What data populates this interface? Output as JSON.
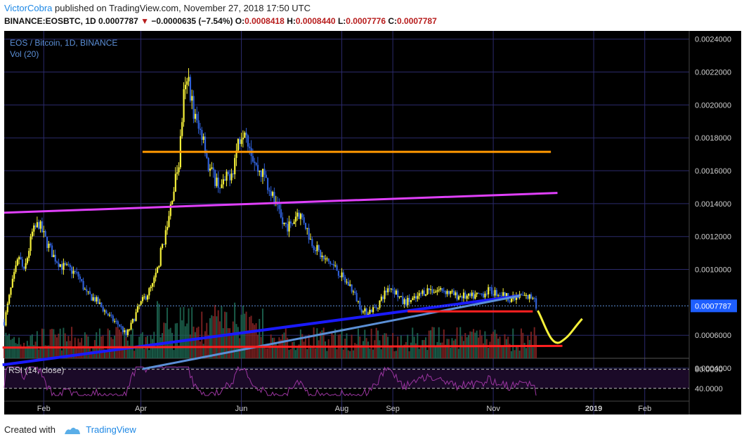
{
  "header": {
    "author": "VictorCobra",
    "published": "published on TradingView.com, November 27, 2018 17:50 UTC",
    "symbol": "BINANCE:EOSBTC, 1D",
    "last": "0.0007787",
    "arrow": "▼",
    "change": "−0.0000635 (−7.54%)",
    "o_label": "O:",
    "o": "0.0008418",
    "h_label": "H:",
    "h": "0.0008440",
    "l_label": "L:",
    "l": "0.0007776",
    "c_label": "C:",
    "c": "0.0007787"
  },
  "footer": {
    "created": "Created with",
    "brand": "TradingView"
  },
  "colors": {
    "bg": "#000000",
    "grid": "#2b2a6b",
    "up": "#f5f03a",
    "down": "#2f5fd6",
    "vol_up": "#1f6b55",
    "vol_down": "#8a2424",
    "rsi": "#9b35a0"
  },
  "chart_data": {
    "type": "candlestick",
    "title": "EOS / Bitcoin, 1D, BINANCE",
    "volume_label": "Vol (20)",
    "rsi_label": "RSI (14, close)",
    "price_ticks": [
      "0.0024000",
      "0.0022000",
      "0.0020000",
      "0.0018000",
      "0.0016000",
      "0.0014000",
      "0.0012000",
      "0.0010000",
      "0.0006000",
      "0.0004000"
    ],
    "price_tick_values": [
      0.0024,
      0.0022,
      0.002,
      0.0018,
      0.0016,
      0.0014,
      0.0012,
      0.001,
      0.0006,
      0.0004
    ],
    "last_price_label": "0.0007787",
    "last_price": 0.0007787,
    "ylim": [
      0.00038,
      0.00245
    ],
    "rsi_ticks": [
      "80.0000",
      "40.0000"
    ],
    "rsi_tick_values": [
      80,
      40
    ],
    "time_labels": [
      "Feb",
      "Apr",
      "Jun",
      "Aug",
      "Sep",
      "Nov",
      "2019",
      "Feb"
    ],
    "time_label_dates": [
      "2018-02-01",
      "2018-04-01",
      "2018-06-01",
      "2018-08-01",
      "2018-09-01",
      "2018-11-01",
      "2019-01-01",
      "2019-02-01"
    ],
    "date_range": [
      "2018-01-08",
      "2019-02-28"
    ],
    "price_path": [
      [
        "2018-01-08",
        0.00068
      ],
      [
        "2018-01-12",
        0.00088
      ],
      [
        "2018-01-17",
        0.00108
      ],
      [
        "2018-01-20",
        0.00098
      ],
      [
        "2018-01-25",
        0.00122
      ],
      [
        "2018-01-29",
        0.00128
      ],
      [
        "2018-02-02",
        0.00118
      ],
      [
        "2018-02-07",
        0.00108
      ],
      [
        "2018-02-12",
        0.00102
      ],
      [
        "2018-02-17",
        0.001
      ],
      [
        "2018-02-22",
        0.00096
      ],
      [
        "2018-02-27",
        0.00085
      ],
      [
        "2018-03-04",
        0.00082
      ],
      [
        "2018-03-09",
        0.00076
      ],
      [
        "2018-03-14",
        0.0007
      ],
      [
        "2018-03-19",
        0.00066
      ],
      [
        "2018-03-23",
        0.0006
      ],
      [
        "2018-03-26",
        0.00066
      ],
      [
        "2018-03-31",
        0.00078
      ],
      [
        "2018-04-04",
        0.00084
      ],
      [
        "2018-04-08",
        0.0009
      ],
      [
        "2018-04-11",
        0.001
      ],
      [
        "2018-04-14",
        0.00115
      ],
      [
        "2018-04-17",
        0.00125
      ],
      [
        "2018-04-20",
        0.00145
      ],
      [
        "2018-04-24",
        0.00165
      ],
      [
        "2018-04-27",
        0.00205
      ],
      [
        "2018-04-30",
        0.00215
      ],
      [
        "2018-05-03",
        0.00195
      ],
      [
        "2018-05-06",
        0.00185
      ],
      [
        "2018-05-09",
        0.00182
      ],
      [
        "2018-05-12",
        0.00162
      ],
      [
        "2018-05-16",
        0.00155
      ],
      [
        "2018-05-20",
        0.0015
      ],
      [
        "2018-05-23",
        0.00155
      ],
      [
        "2018-05-27",
        0.00162
      ],
      [
        "2018-05-30",
        0.00178
      ],
      [
        "2018-06-03",
        0.00188
      ],
      [
        "2018-06-06",
        0.00176
      ],
      [
        "2018-06-10",
        0.00162
      ],
      [
        "2018-06-14",
        0.00158
      ],
      [
        "2018-06-18",
        0.0015
      ],
      [
        "2018-06-22",
        0.00138
      ],
      [
        "2018-06-26",
        0.00128
      ],
      [
        "2018-07-01",
        0.00126
      ],
      [
        "2018-07-05",
        0.00135
      ],
      [
        "2018-07-09",
        0.0013
      ],
      [
        "2018-07-13",
        0.00118
      ],
      [
        "2018-07-17",
        0.00112
      ],
      [
        "2018-07-21",
        0.00106
      ],
      [
        "2018-07-25",
        0.00104
      ],
      [
        "2018-07-29",
        0.001
      ],
      [
        "2018-08-02",
        0.00094
      ],
      [
        "2018-08-06",
        0.0009
      ],
      [
        "2018-08-10",
        0.00082
      ],
      [
        "2018-08-14",
        0.00074
      ],
      [
        "2018-08-18",
        0.00075
      ],
      [
        "2018-08-22",
        0.00077
      ],
      [
        "2018-08-26",
        0.00084
      ],
      [
        "2018-08-30",
        0.0009
      ],
      [
        "2018-09-03",
        0.00086
      ],
      [
        "2018-09-07",
        0.0008
      ],
      [
        "2018-09-11",
        0.00081
      ],
      [
        "2018-09-15",
        0.00082
      ],
      [
        "2018-09-19",
        0.00086
      ],
      [
        "2018-09-23",
        0.00088
      ],
      [
        "2018-09-27",
        0.00087
      ],
      [
        "2018-10-01",
        0.00088
      ],
      [
        "2018-10-05",
        0.00086
      ],
      [
        "2018-10-09",
        0.00084
      ],
      [
        "2018-10-13",
        0.00084
      ],
      [
        "2018-10-17",
        0.00083
      ],
      [
        "2018-10-21",
        0.00084
      ],
      [
        "2018-10-25",
        0.00085
      ],
      [
        "2018-10-29",
        0.00087
      ],
      [
        "2018-11-02",
        0.00086
      ],
      [
        "2018-11-06",
        0.00085
      ],
      [
        "2018-11-10",
        0.00083
      ],
      [
        "2018-11-14",
        0.00082
      ],
      [
        "2018-11-18",
        0.00084
      ],
      [
        "2018-11-22",
        0.00083
      ],
      [
        "2018-11-26",
        0.00084
      ],
      [
        "2018-11-27",
        0.00078
      ]
    ],
    "annotations": [
      {
        "name": "resistance-orange",
        "color": "#ff9800",
        "points": [
          [
            "2018-04-02",
            0.001715
          ],
          [
            "2018-12-06",
            0.001715
          ]
        ]
      },
      {
        "name": "trendline-magenta",
        "color": "#e040fb",
        "points": [
          [
            "2018-01-08",
            0.001345
          ],
          [
            "2018-12-10",
            0.001465
          ]
        ]
      },
      {
        "name": "support-blue",
        "color": "#1a1aff",
        "points": [
          [
            "2018-01-07",
            0.00042
          ],
          [
            "2018-11-17",
            0.00084
          ]
        ]
      },
      {
        "name": "support-lightblue",
        "color": "#5b8fd6",
        "points": [
          [
            "2018-04-02",
            0.000395
          ],
          [
            "2018-11-17",
            0.00084
          ]
        ]
      },
      {
        "name": "support-red-upper",
        "color": "#ff2020",
        "points": [
          [
            "2018-09-10",
            0.000745
          ],
          [
            "2018-11-25",
            0.000745
          ]
        ]
      },
      {
        "name": "support-red-lower",
        "color": "#ff2020",
        "points": [
          [
            "2018-01-07",
            0.000525
          ],
          [
            "2018-12-13",
            0.000535
          ]
        ]
      }
    ],
    "grid": true
  }
}
